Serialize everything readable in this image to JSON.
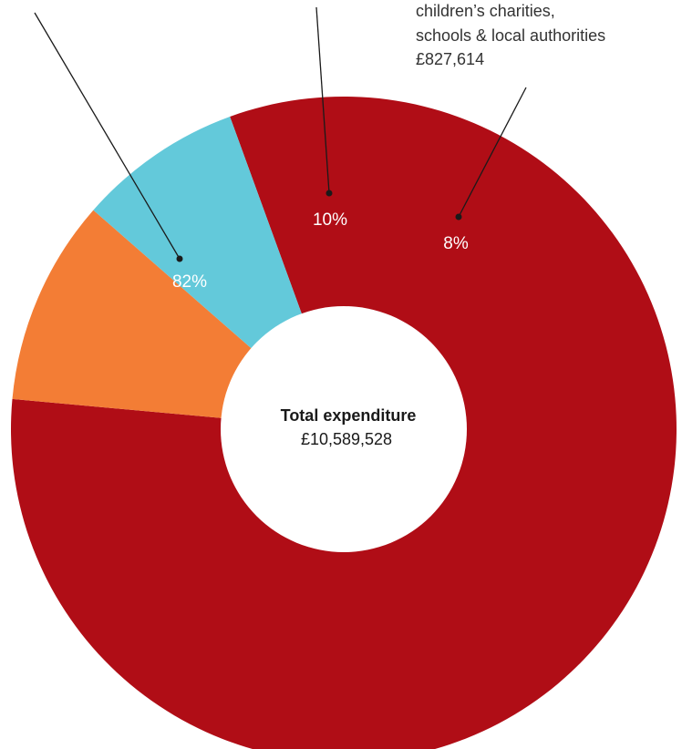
{
  "chart_data": {
    "type": "pie",
    "variant": "donut",
    "start_angle_deg": -20,
    "center_title": "Total expenditure",
    "center_value": "£10,589,528",
    "slices": [
      {
        "label": "",
        "percent_label": "82%",
        "value": 82,
        "color": "#b00d16"
      },
      {
        "label": "",
        "percent_label": "10%",
        "value": 10,
        "color": "#f37d35"
      },
      {
        "label": "",
        "percent_label": "8%",
        "value": 8,
        "color": "#63c9da"
      }
    ],
    "annotations": [
      {
        "lines": [
          "children’s charities,",
          "schools & local authorities",
          "£827,614"
        ]
      }
    ]
  }
}
